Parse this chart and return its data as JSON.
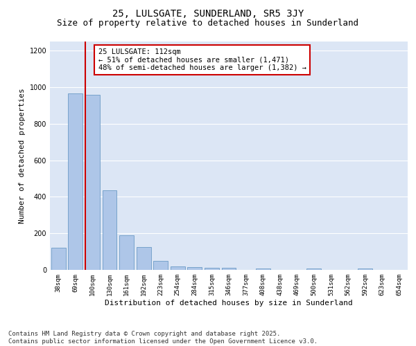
{
  "title": "25, LULSGATE, SUNDERLAND, SR5 3JY",
  "subtitle": "Size of property relative to detached houses in Sunderland",
  "xlabel": "Distribution of detached houses by size in Sunderland",
  "ylabel": "Number of detached properties",
  "categories": [
    "38sqm",
    "69sqm",
    "100sqm",
    "130sqm",
    "161sqm",
    "192sqm",
    "223sqm",
    "254sqm",
    "284sqm",
    "315sqm",
    "346sqm",
    "377sqm",
    "408sqm",
    "438sqm",
    "469sqm",
    "500sqm",
    "531sqm",
    "562sqm",
    "592sqm",
    "623sqm",
    "654sqm"
  ],
  "values": [
    120,
    965,
    960,
    435,
    190,
    125,
    48,
    20,
    15,
    13,
    12,
    0,
    8,
    0,
    0,
    9,
    0,
    0,
    8,
    0,
    0
  ],
  "bar_color": "#aec6e8",
  "bar_edge_color": "#5a8fbe",
  "vline_color": "#cc0000",
  "vline_x_index": 2,
  "annotation_text": "25 LULSGATE: 112sqm\n← 51% of detached houses are smaller (1,471)\n48% of semi-detached houses are larger (1,382) →",
  "annotation_box_color": "#ffffff",
  "annotation_box_edge": "#cc0000",
  "ylim": [
    0,
    1250
  ],
  "yticks": [
    0,
    200,
    400,
    600,
    800,
    1000,
    1200
  ],
  "bg_color": "#dce6f5",
  "grid_color": "#ffffff",
  "footer": "Contains HM Land Registry data © Crown copyright and database right 2025.\nContains public sector information licensed under the Open Government Licence v3.0.",
  "title_fontsize": 10,
  "subtitle_fontsize": 9,
  "annotation_fontsize": 7.5,
  "footer_fontsize": 6.5,
  "ylabel_fontsize": 8,
  "xlabel_fontsize": 8,
  "tick_fontsize": 6.5
}
